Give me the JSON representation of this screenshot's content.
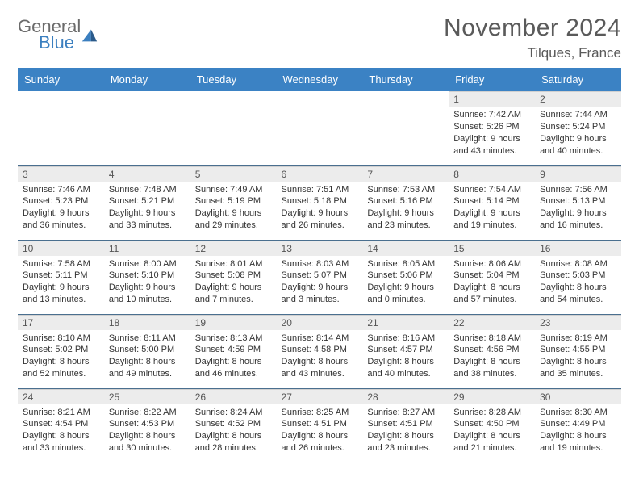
{
  "brand": {
    "word1": "General",
    "word2": "Blue"
  },
  "title": "November 2024",
  "location": "Tilques, France",
  "colors": {
    "header_bg": "#3b82c4",
    "header_fg": "#ffffff",
    "daybar_bg": "#ececec",
    "row_border": "#4a6f8f",
    "logo_gray": "#6b6b6b",
    "logo_blue": "#3b7fbf"
  },
  "day_headers": [
    "Sunday",
    "Monday",
    "Tuesday",
    "Wednesday",
    "Thursday",
    "Friday",
    "Saturday"
  ],
  "weeks": [
    [
      {
        "n": "",
        "empty": true
      },
      {
        "n": "",
        "empty": true
      },
      {
        "n": "",
        "empty": true
      },
      {
        "n": "",
        "empty": true
      },
      {
        "n": "",
        "empty": true
      },
      {
        "n": "1",
        "sunrise": "Sunrise: 7:42 AM",
        "sunset": "Sunset: 5:26 PM",
        "day1": "Daylight: 9 hours",
        "day2": "and 43 minutes."
      },
      {
        "n": "2",
        "sunrise": "Sunrise: 7:44 AM",
        "sunset": "Sunset: 5:24 PM",
        "day1": "Daylight: 9 hours",
        "day2": "and 40 minutes."
      }
    ],
    [
      {
        "n": "3",
        "sunrise": "Sunrise: 7:46 AM",
        "sunset": "Sunset: 5:23 PM",
        "day1": "Daylight: 9 hours",
        "day2": "and 36 minutes."
      },
      {
        "n": "4",
        "sunrise": "Sunrise: 7:48 AM",
        "sunset": "Sunset: 5:21 PM",
        "day1": "Daylight: 9 hours",
        "day2": "and 33 minutes."
      },
      {
        "n": "5",
        "sunrise": "Sunrise: 7:49 AM",
        "sunset": "Sunset: 5:19 PM",
        "day1": "Daylight: 9 hours",
        "day2": "and 29 minutes."
      },
      {
        "n": "6",
        "sunrise": "Sunrise: 7:51 AM",
        "sunset": "Sunset: 5:18 PM",
        "day1": "Daylight: 9 hours",
        "day2": "and 26 minutes."
      },
      {
        "n": "7",
        "sunrise": "Sunrise: 7:53 AM",
        "sunset": "Sunset: 5:16 PM",
        "day1": "Daylight: 9 hours",
        "day2": "and 23 minutes."
      },
      {
        "n": "8",
        "sunrise": "Sunrise: 7:54 AM",
        "sunset": "Sunset: 5:14 PM",
        "day1": "Daylight: 9 hours",
        "day2": "and 19 minutes."
      },
      {
        "n": "9",
        "sunrise": "Sunrise: 7:56 AM",
        "sunset": "Sunset: 5:13 PM",
        "day1": "Daylight: 9 hours",
        "day2": "and 16 minutes."
      }
    ],
    [
      {
        "n": "10",
        "sunrise": "Sunrise: 7:58 AM",
        "sunset": "Sunset: 5:11 PM",
        "day1": "Daylight: 9 hours",
        "day2": "and 13 minutes."
      },
      {
        "n": "11",
        "sunrise": "Sunrise: 8:00 AM",
        "sunset": "Sunset: 5:10 PM",
        "day1": "Daylight: 9 hours",
        "day2": "and 10 minutes."
      },
      {
        "n": "12",
        "sunrise": "Sunrise: 8:01 AM",
        "sunset": "Sunset: 5:08 PM",
        "day1": "Daylight: 9 hours",
        "day2": "and 7 minutes."
      },
      {
        "n": "13",
        "sunrise": "Sunrise: 8:03 AM",
        "sunset": "Sunset: 5:07 PM",
        "day1": "Daylight: 9 hours",
        "day2": "and 3 minutes."
      },
      {
        "n": "14",
        "sunrise": "Sunrise: 8:05 AM",
        "sunset": "Sunset: 5:06 PM",
        "day1": "Daylight: 9 hours",
        "day2": "and 0 minutes."
      },
      {
        "n": "15",
        "sunrise": "Sunrise: 8:06 AM",
        "sunset": "Sunset: 5:04 PM",
        "day1": "Daylight: 8 hours",
        "day2": "and 57 minutes."
      },
      {
        "n": "16",
        "sunrise": "Sunrise: 8:08 AM",
        "sunset": "Sunset: 5:03 PM",
        "day1": "Daylight: 8 hours",
        "day2": "and 54 minutes."
      }
    ],
    [
      {
        "n": "17",
        "sunrise": "Sunrise: 8:10 AM",
        "sunset": "Sunset: 5:02 PM",
        "day1": "Daylight: 8 hours",
        "day2": "and 52 minutes."
      },
      {
        "n": "18",
        "sunrise": "Sunrise: 8:11 AM",
        "sunset": "Sunset: 5:00 PM",
        "day1": "Daylight: 8 hours",
        "day2": "and 49 minutes."
      },
      {
        "n": "19",
        "sunrise": "Sunrise: 8:13 AM",
        "sunset": "Sunset: 4:59 PM",
        "day1": "Daylight: 8 hours",
        "day2": "and 46 minutes."
      },
      {
        "n": "20",
        "sunrise": "Sunrise: 8:14 AM",
        "sunset": "Sunset: 4:58 PM",
        "day1": "Daylight: 8 hours",
        "day2": "and 43 minutes."
      },
      {
        "n": "21",
        "sunrise": "Sunrise: 8:16 AM",
        "sunset": "Sunset: 4:57 PM",
        "day1": "Daylight: 8 hours",
        "day2": "and 40 minutes."
      },
      {
        "n": "22",
        "sunrise": "Sunrise: 8:18 AM",
        "sunset": "Sunset: 4:56 PM",
        "day1": "Daylight: 8 hours",
        "day2": "and 38 minutes."
      },
      {
        "n": "23",
        "sunrise": "Sunrise: 8:19 AM",
        "sunset": "Sunset: 4:55 PM",
        "day1": "Daylight: 8 hours",
        "day2": "and 35 minutes."
      }
    ],
    [
      {
        "n": "24",
        "sunrise": "Sunrise: 8:21 AM",
        "sunset": "Sunset: 4:54 PM",
        "day1": "Daylight: 8 hours",
        "day2": "and 33 minutes."
      },
      {
        "n": "25",
        "sunrise": "Sunrise: 8:22 AM",
        "sunset": "Sunset: 4:53 PM",
        "day1": "Daylight: 8 hours",
        "day2": "and 30 minutes."
      },
      {
        "n": "26",
        "sunrise": "Sunrise: 8:24 AM",
        "sunset": "Sunset: 4:52 PM",
        "day1": "Daylight: 8 hours",
        "day2": "and 28 minutes."
      },
      {
        "n": "27",
        "sunrise": "Sunrise: 8:25 AM",
        "sunset": "Sunset: 4:51 PM",
        "day1": "Daylight: 8 hours",
        "day2": "and 26 minutes."
      },
      {
        "n": "28",
        "sunrise": "Sunrise: 8:27 AM",
        "sunset": "Sunset: 4:51 PM",
        "day1": "Daylight: 8 hours",
        "day2": "and 23 minutes."
      },
      {
        "n": "29",
        "sunrise": "Sunrise: 8:28 AM",
        "sunset": "Sunset: 4:50 PM",
        "day1": "Daylight: 8 hours",
        "day2": "and 21 minutes."
      },
      {
        "n": "30",
        "sunrise": "Sunrise: 8:30 AM",
        "sunset": "Sunset: 4:49 PM",
        "day1": "Daylight: 8 hours",
        "day2": "and 19 minutes."
      }
    ]
  ]
}
